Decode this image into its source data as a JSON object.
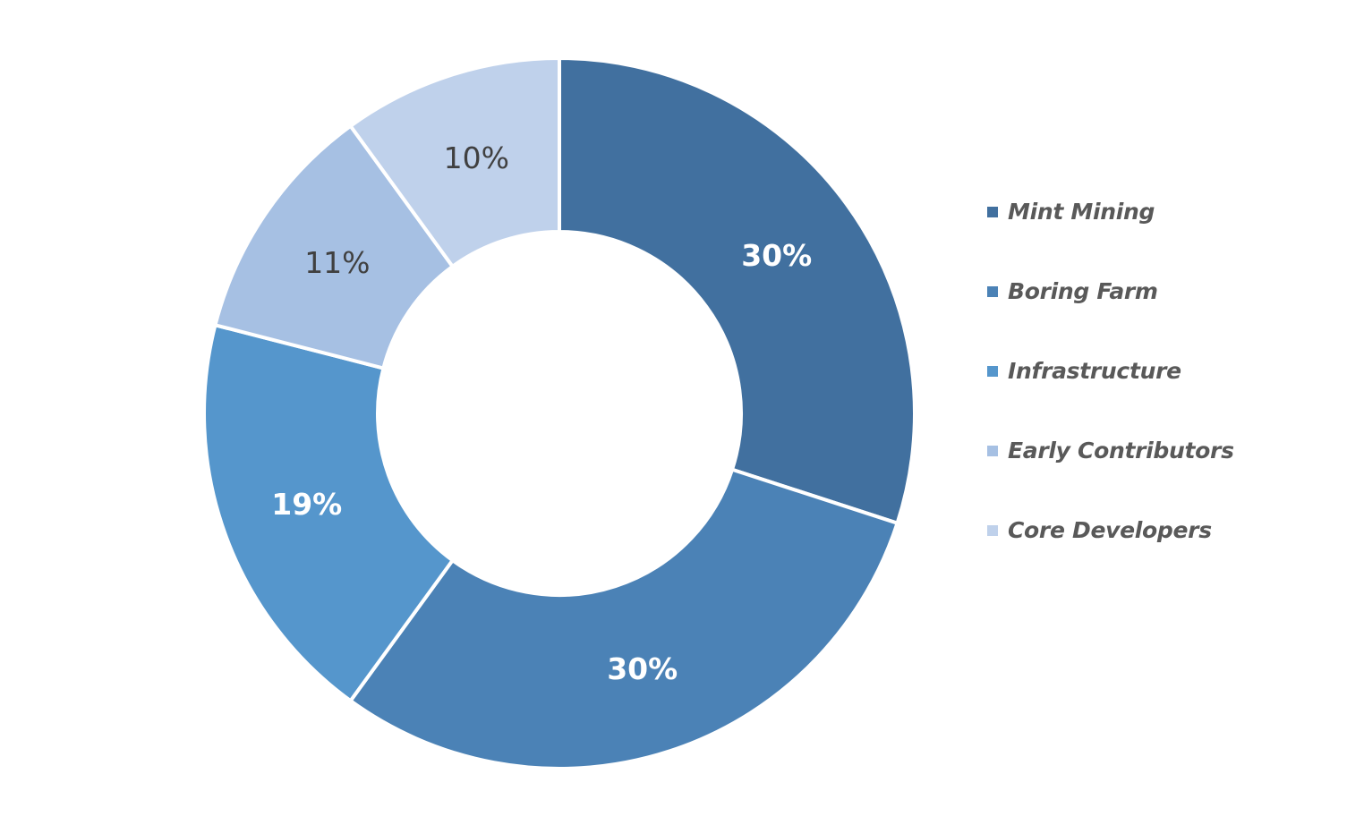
{
  "chart_data": {
    "type": "pie",
    "variant": "donut",
    "title": "",
    "legend_position": "right",
    "start_angle_deg": 0,
    "direction": "clockwise",
    "series": [
      {
        "name": "Mint Mining",
        "value": 30,
        "label": "30%",
        "color": "#41709f",
        "label_color": "#ffffff"
      },
      {
        "name": "Boring Farm",
        "value": 30,
        "label": "30%",
        "color": "#4b82b6",
        "label_color": "#ffffff"
      },
      {
        "name": "Infrastructure",
        "value": 19,
        "label": "19%",
        "color": "#5596cc",
        "label_color": "#ffffff"
      },
      {
        "name": "Early Contributors",
        "value": 11,
        "label": "11%",
        "color": "#a6c0e3",
        "label_color": "#404040"
      },
      {
        "name": "Core Developers",
        "value": 10,
        "label": "10%",
        "color": "#bfd1eb",
        "label_color": "#404040"
      }
    ]
  }
}
